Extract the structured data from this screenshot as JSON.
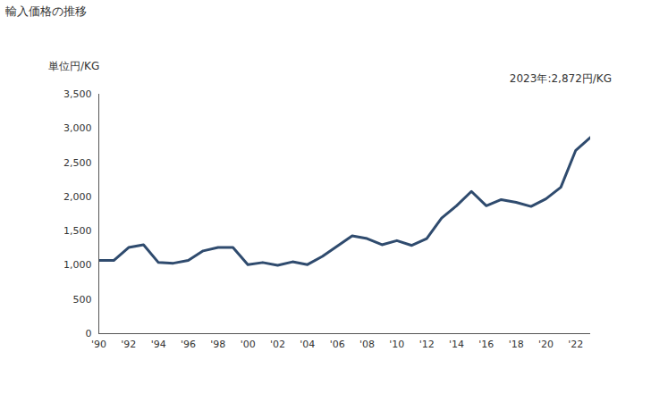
{
  "chart_data": {
    "type": "line",
    "title": "輸入価格の推移",
    "y_label": "単位円/KG",
    "annotation": "2023年:2,872円/KG",
    "x": [
      1990,
      1991,
      1992,
      1993,
      1994,
      1995,
      1996,
      1997,
      1998,
      1999,
      2000,
      2001,
      2002,
      2003,
      2004,
      2005,
      2006,
      2007,
      2008,
      2009,
      2010,
      2011,
      2012,
      2013,
      2014,
      2015,
      2016,
      2017,
      2018,
      2019,
      2020,
      2021,
      2022,
      2023
    ],
    "values": [
      1070,
      1070,
      1260,
      1300,
      1040,
      1030,
      1070,
      1210,
      1260,
      1260,
      1010,
      1040,
      1000,
      1050,
      1010,
      1130,
      1280,
      1430,
      1390,
      1300,
      1360,
      1290,
      1390,
      1690,
      1870,
      2080,
      1870,
      1960,
      1920,
      1860,
      1970,
      2140,
      2680,
      2872
    ],
    "color": "#2f4b6e",
    "xlim": [
      1990,
      2023
    ],
    "xticks": [
      {
        "value": 1990,
        "label": "'90"
      },
      {
        "value": 1992,
        "label": "'92"
      },
      {
        "value": 1994,
        "label": "'94"
      },
      {
        "value": 1996,
        "label": "'96"
      },
      {
        "value": 1998,
        "label": "'98"
      },
      {
        "value": 2000,
        "label": "'00"
      },
      {
        "value": 2002,
        "label": "'02"
      },
      {
        "value": 2004,
        "label": "'04"
      },
      {
        "value": 2006,
        "label": "'06"
      },
      {
        "value": 2008,
        "label": "'08"
      },
      {
        "value": 2010,
        "label": "'10"
      },
      {
        "value": 2012,
        "label": "'12"
      },
      {
        "value": 2014,
        "label": "'14"
      },
      {
        "value": 2016,
        "label": "'16"
      },
      {
        "value": 2018,
        "label": "'18"
      },
      {
        "value": 2020,
        "label": "'20"
      },
      {
        "value": 2022,
        "label": "'22"
      }
    ],
    "ylim": [
      0,
      3500
    ],
    "yticks": [
      0,
      500,
      {
        "value": 1000,
        "label": "1,000"
      },
      {
        "value": 1500,
        "label": "1,500"
      },
      {
        "value": 2000,
        "label": "2,000"
      },
      {
        "value": 2500,
        "label": "2,500"
      },
      {
        "value": 3000,
        "label": "3,000"
      },
      {
        "value": 3500,
        "label": "3,500"
      }
    ],
    "grid": false
  }
}
